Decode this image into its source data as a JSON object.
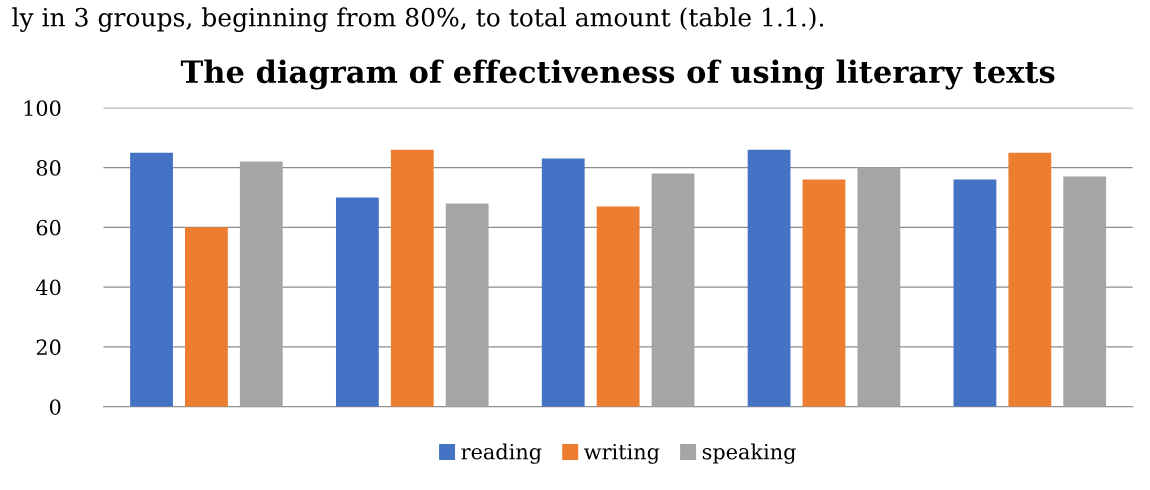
{
  "chart_data": {
    "type": "bar",
    "title": "The diagram of effectiveness of using literary texts",
    "annotations": [
      "ly in 3 groups, beginning from 80%, to total amount (table 1.1.)."
    ],
    "categories": [
      null,
      null,
      null,
      null,
      null
    ],
    "series": [
      {
        "name": "reading",
        "color": "#4472c4",
        "values": [
          85,
          70,
          83,
          86,
          76
        ]
      },
      {
        "name": "writing",
        "color": "#ed7d31",
        "values": [
          60,
          86,
          67,
          76,
          85
        ]
      },
      {
        "name": "speaking",
        "color": "#a5a5a5",
        "values": [
          82,
          68,
          78,
          80,
          77
        ]
      }
    ],
    "ylim": [
      0,
      100
    ],
    "yticks": [
      0,
      20,
      40,
      60,
      80,
      100
    ],
    "grid": "y",
    "legend": "bottom"
  }
}
